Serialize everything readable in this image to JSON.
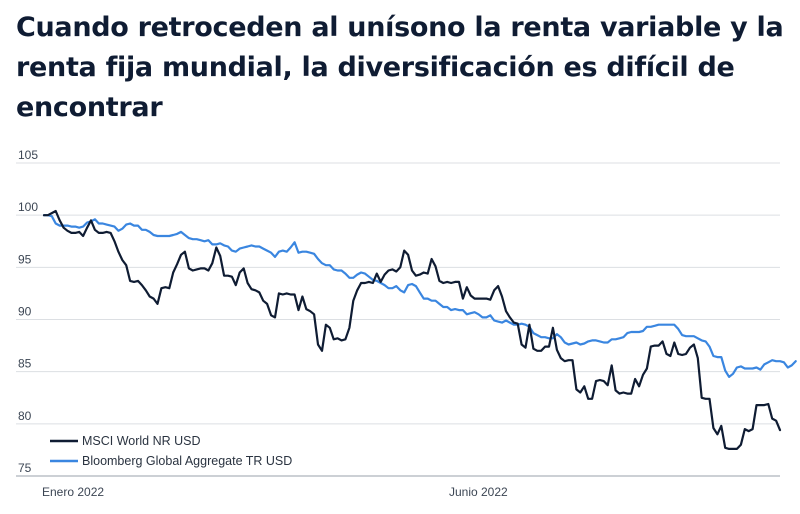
{
  "title": "Cuando retroceden al unísono la renta variable y la renta fija mundial, la diversificación es difícil de encontrar",
  "chart_data": {
    "type": "line",
    "title": "Cuando retroceden al unísono la renta variable y la renta fija mundial, la diversificación es difícil de encontrar",
    "xlabel": "",
    "ylabel": "",
    "ylim": [
      75,
      105
    ],
    "yticks": [
      75,
      80,
      85,
      90,
      95,
      100,
      105
    ],
    "xtick_labels": [
      {
        "label": "Enero 2022",
        "index": 0
      },
      {
        "label": "Junio 2022",
        "index": 106
      }
    ],
    "grid": true,
    "legend_position": "bottom-left",
    "series": [
      {
        "name": "MSCI World NR USD",
        "color": "#0f1c33",
        "values": [
          100,
          100,
          100.2,
          100.4,
          99.5,
          98.8,
          98.5,
          98.3,
          98.3,
          98.4,
          98.0,
          98.8,
          99.5,
          98.6,
          98.3,
          98.3,
          98.4,
          98.3,
          97.5,
          96.5,
          95.7,
          95.2,
          93.7,
          93.6,
          93.7,
          93.3,
          92.8,
          92.2,
          92.0,
          91.5,
          93.0,
          93.1,
          93.0,
          94.5,
          95.3,
          96.2,
          96.5,
          94.9,
          94.7,
          94.8,
          94.9,
          94.9,
          94.7,
          95.4,
          96.9,
          96.1,
          94.2,
          94.2,
          94.1,
          93.3,
          94.5,
          94.9,
          93.5,
          92.9,
          92.8,
          92.6,
          91.8,
          91.5,
          90.4,
          90.2,
          92.5,
          92.4,
          92.5,
          92.4,
          92.4,
          90.9,
          92.2,
          91.0,
          90.8,
          90.5,
          87.6,
          87.0,
          89.5,
          89.2,
          88.1,
          88.2,
          88.0,
          88.1,
          89.2,
          91.8,
          92.8,
          93.5,
          93.5,
          93.6,
          93.5,
          94.4,
          93.6,
          94.3,
          94.7,
          94.8,
          94.6,
          95.0,
          96.6,
          96.2,
          94.7,
          94.2,
          94.3,
          94.5,
          94.4,
          95.8,
          95.1,
          93.7,
          93.5,
          93.6,
          93.5,
          93.6,
          93.6,
          92.0,
          93.1,
          92.3,
          92.0,
          92.0,
          92.0,
          92.0,
          91.9,
          92.8,
          93.2,
          92.2,
          90.8,
          90.2,
          89.7,
          89.6,
          87.6,
          87.3,
          89.5,
          87.2,
          87.0,
          87.0,
          87.4,
          87.4,
          89.2,
          87.1,
          86.3,
          86.0,
          86.1,
          86.1,
          83.3,
          83.0,
          83.6,
          82.4,
          82.4,
          84.1,
          84.2,
          84.1,
          83.7,
          85.6,
          83.2,
          82.9,
          83.0,
          82.9,
          82.9,
          84.3,
          83.6,
          84.7,
          85.3,
          87.4,
          87.5,
          87.5,
          87.9,
          86.7,
          86.5,
          87.8,
          86.7,
          86.6,
          86.7,
          87.3,
          87.6,
          86.3,
          82.5,
          82.4,
          82.4,
          79.6,
          79.0,
          79.8,
          77.7,
          77.6,
          77.6,
          77.6,
          78.0,
          79.5,
          79.3,
          79.5,
          81.8,
          81.8,
          81.8,
          81.9,
          80.5,
          80.3,
          79.4
        ]
      },
      {
        "name": "Bloomberg Global Aggregate TR USD",
        "color": "#3a86e0",
        "values": [
          100,
          100,
          99.9,
          99.2,
          99.0,
          99.0,
          99.0,
          98.9,
          98.9,
          98.8,
          98.9,
          99.3,
          99.4,
          99.6,
          99.2,
          99.2,
          99.1,
          99.0,
          98.9,
          98.5,
          98.7,
          99.1,
          99.2,
          99.0,
          99.0,
          98.6,
          98.6,
          98.4,
          98.1,
          98.0,
          98.0,
          98.0,
          98.0,
          98.1,
          98.2,
          98.4,
          98.1,
          97.8,
          97.7,
          97.7,
          97.6,
          97.5,
          97.6,
          97.2,
          97.2,
          97.3,
          97.1,
          97.0,
          96.6,
          96.5,
          96.8,
          96.9,
          97.0,
          97.1,
          97.0,
          97.0,
          96.8,
          96.6,
          96.4,
          96.0,
          96.5,
          96.6,
          96.5,
          96.9,
          97.4,
          96.4,
          96.5,
          96.5,
          96.4,
          96.3,
          95.8,
          95.4,
          95.2,
          95.2,
          94.8,
          94.7,
          94.7,
          94.4,
          94.0,
          94.0,
          94.3,
          94.5,
          94.4,
          94.1,
          93.8,
          93.7,
          93.5,
          93.3,
          93.0,
          93.0,
          93.2,
          92.8,
          92.6,
          93.3,
          93.4,
          93.2,
          92.6,
          92.0,
          92.0,
          91.8,
          91.8,
          91.5,
          91.2,
          91.2,
          90.9,
          91.0,
          90.9,
          90.9,
          90.5,
          90.6,
          90.7,
          90.5,
          90.2,
          90.2,
          90.4,
          89.9,
          89.8,
          89.7,
          89.9,
          89.7,
          89.5,
          89.5,
          89.6,
          89.5,
          89.3,
          88.7,
          88.5,
          88.3,
          88.3,
          88.2,
          88.2,
          88.6,
          88.3,
          87.8,
          87.6,
          87.7,
          87.8,
          87.6,
          87.7,
          87.9,
          88.0,
          88.0,
          87.9,
          87.8,
          87.8,
          88.1,
          88.1,
          88.2,
          88.3,
          88.7,
          88.8,
          88.8,
          88.8,
          88.9,
          89.3,
          89.3,
          89.4,
          89.5,
          89.5,
          89.5,
          89.5,
          89.5,
          89.1,
          88.5,
          88.4,
          88.4,
          88.4,
          88.2,
          88.0,
          87.9,
          87.4,
          86.5,
          86.4,
          86.4,
          85.1,
          84.5,
          84.8,
          85.4,
          85.5,
          85.3,
          85.3,
          85.3,
          85.4,
          85.2,
          85.7,
          85.9,
          86.1,
          86.0,
          86.0,
          85.9,
          85.4,
          85.6,
          86.0
        ]
      }
    ]
  }
}
